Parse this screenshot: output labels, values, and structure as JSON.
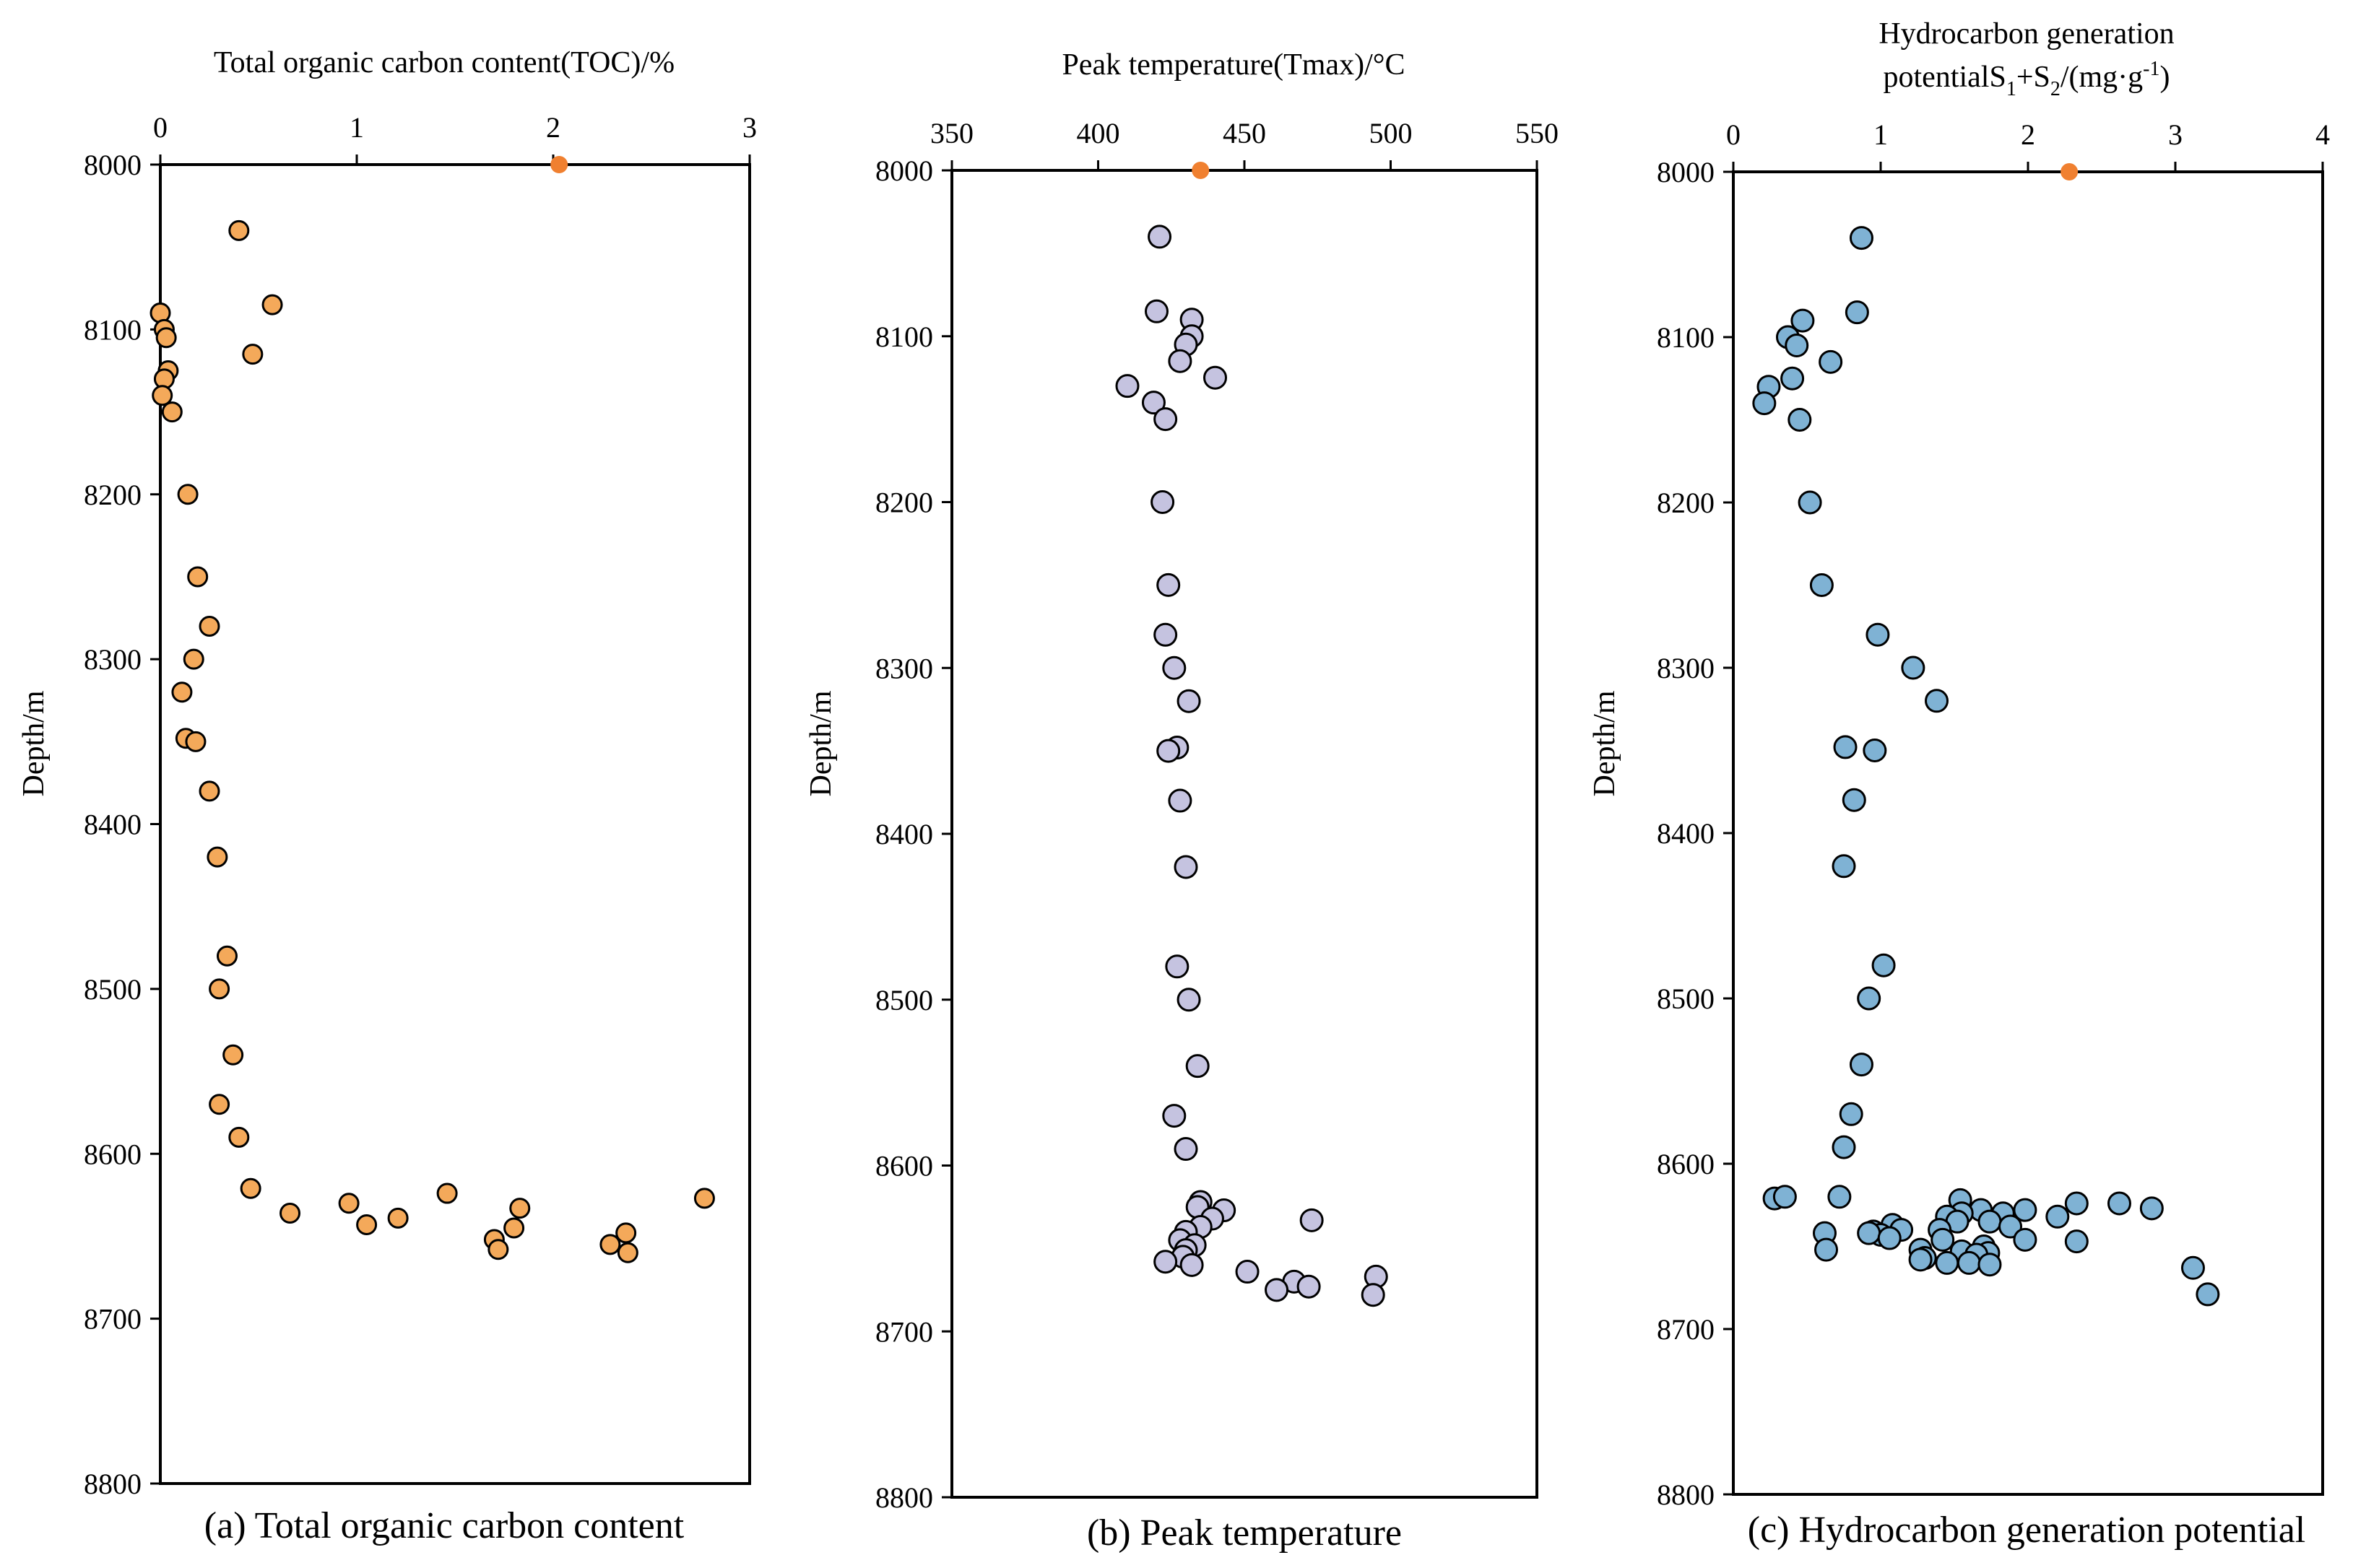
{
  "chart_data": [
    {
      "type": "scatter",
      "id": "toc",
      "title": "Total organic carbon content(TOC)/%",
      "ylabel": "Depth/m",
      "caption": "(a) Total organic carbon content",
      "xlim": [
        0,
        3
      ],
      "xticks": [
        0,
        1,
        2,
        3
      ],
      "ylim": [
        8000,
        8800
      ],
      "yticks": [
        8000,
        8100,
        8200,
        8300,
        8400,
        8500,
        8600,
        8700,
        8800
      ],
      "point_color": "#F4A95A",
      "marker_color": "#F08030",
      "marker": {
        "x": 2.03,
        "y": 8000
      },
      "points": [
        {
          "x": 0.4,
          "y": 8040
        },
        {
          "x": 0.57,
          "y": 8085
        },
        {
          "x": 0.0,
          "y": 8090
        },
        {
          "x": 0.02,
          "y": 8100
        },
        {
          "x": 0.03,
          "y": 8105
        },
        {
          "x": 0.47,
          "y": 8115
        },
        {
          "x": 0.04,
          "y": 8125
        },
        {
          "x": 0.02,
          "y": 8130
        },
        {
          "x": 0.01,
          "y": 8140
        },
        {
          "x": 0.06,
          "y": 8150
        },
        {
          "x": 0.14,
          "y": 8200
        },
        {
          "x": 0.19,
          "y": 8250
        },
        {
          "x": 0.25,
          "y": 8280
        },
        {
          "x": 0.17,
          "y": 8300
        },
        {
          "x": 0.11,
          "y": 8320
        },
        {
          "x": 0.13,
          "y": 8348
        },
        {
          "x": 0.18,
          "y": 8350
        },
        {
          "x": 0.25,
          "y": 8380
        },
        {
          "x": 0.29,
          "y": 8420
        },
        {
          "x": 0.34,
          "y": 8480
        },
        {
          "x": 0.3,
          "y": 8500
        },
        {
          "x": 0.37,
          "y": 8540
        },
        {
          "x": 0.3,
          "y": 8570
        },
        {
          "x": 0.4,
          "y": 8590
        },
        {
          "x": 0.46,
          "y": 8621
        },
        {
          "x": 0.66,
          "y": 8636
        },
        {
          "x": 0.96,
          "y": 8630
        },
        {
          "x": 1.05,
          "y": 8643
        },
        {
          "x": 1.21,
          "y": 8639
        },
        {
          "x": 1.46,
          "y": 8624
        },
        {
          "x": 1.7,
          "y": 8652
        },
        {
          "x": 1.72,
          "y": 8658
        },
        {
          "x": 1.8,
          "y": 8645
        },
        {
          "x": 1.83,
          "y": 8633
        },
        {
          "x": 2.29,
          "y": 8655
        },
        {
          "x": 2.37,
          "y": 8648
        },
        {
          "x": 2.38,
          "y": 8660
        },
        {
          "x": 2.77,
          "y": 8627
        }
      ]
    },
    {
      "type": "scatter",
      "id": "tmax",
      "title": "Peak temperature(Tmax)/°C",
      "ylabel": "Depth/m",
      "caption": "(b) Peak temperature",
      "xlim": [
        350,
        550
      ],
      "xticks": [
        350,
        400,
        450,
        500,
        550
      ],
      "ylim": [
        8000,
        8800
      ],
      "yticks": [
        8000,
        8100,
        8200,
        8300,
        8400,
        8500,
        8600,
        8700,
        8800
      ],
      "point_color": "#C5C3E0",
      "marker_color": "#F08030",
      "marker": {
        "x": 435,
        "y": 8000
      },
      "points": [
        {
          "x": 421,
          "y": 8040
        },
        {
          "x": 420,
          "y": 8085
        },
        {
          "x": 432,
          "y": 8090
        },
        {
          "x": 432,
          "y": 8100
        },
        {
          "x": 430,
          "y": 8105
        },
        {
          "x": 428,
          "y": 8115
        },
        {
          "x": 440,
          "y": 8125
        },
        {
          "x": 410,
          "y": 8130
        },
        {
          "x": 419,
          "y": 8140
        },
        {
          "x": 423,
          "y": 8150
        },
        {
          "x": 422,
          "y": 8200
        },
        {
          "x": 424,
          "y": 8250
        },
        {
          "x": 423,
          "y": 8280
        },
        {
          "x": 426,
          "y": 8300
        },
        {
          "x": 431,
          "y": 8320
        },
        {
          "x": 427,
          "y": 8348
        },
        {
          "x": 424,
          "y": 8350
        },
        {
          "x": 428,
          "y": 8380
        },
        {
          "x": 430,
          "y": 8420
        },
        {
          "x": 427,
          "y": 8480
        },
        {
          "x": 431,
          "y": 8500
        },
        {
          "x": 434,
          "y": 8540
        },
        {
          "x": 426,
          "y": 8570
        },
        {
          "x": 430,
          "y": 8590
        },
        {
          "x": 435,
          "y": 8622
        },
        {
          "x": 434,
          "y": 8625
        },
        {
          "x": 443,
          "y": 8627
        },
        {
          "x": 439,
          "y": 8632
        },
        {
          "x": 473,
          "y": 8633
        },
        {
          "x": 435,
          "y": 8637
        },
        {
          "x": 430,
          "y": 8640
        },
        {
          "x": 428,
          "y": 8645
        },
        {
          "x": 433,
          "y": 8648
        },
        {
          "x": 430,
          "y": 8651
        },
        {
          "x": 429,
          "y": 8655
        },
        {
          "x": 423,
          "y": 8658
        },
        {
          "x": 432,
          "y": 8660
        },
        {
          "x": 451,
          "y": 8664
        },
        {
          "x": 495,
          "y": 8667
        },
        {
          "x": 467,
          "y": 8670
        },
        {
          "x": 472,
          "y": 8673
        },
        {
          "x": 461,
          "y": 8675
        },
        {
          "x": 494,
          "y": 8678
        }
      ]
    },
    {
      "type": "scatter",
      "id": "s1s2",
      "title_line1": "Hydrocarbon generation",
      "title_line2_main": "potentialS",
      "title_sub1": "1",
      "title_mid": "+S",
      "title_sub2": "2",
      "title_unit": "/(mg·g",
      "title_sup": "-1",
      "title_end": ")",
      "ylabel": "Depth/m",
      "caption": "(c) Hydrocarbon generation potential",
      "xlim": [
        0,
        4
      ],
      "xticks": [
        0,
        1,
        2,
        3,
        4
      ],
      "ylim": [
        8000,
        8800
      ],
      "yticks": [
        8000,
        8100,
        8200,
        8300,
        8400,
        8500,
        8600,
        8700,
        8800
      ],
      "point_color": "#7FB2D4",
      "marker_color": "#F08030",
      "marker": {
        "x": 2.28,
        "y": 8000
      },
      "points": [
        {
          "x": 0.87,
          "y": 8040
        },
        {
          "x": 0.84,
          "y": 8085
        },
        {
          "x": 0.47,
          "y": 8090
        },
        {
          "x": 0.37,
          "y": 8100
        },
        {
          "x": 0.43,
          "y": 8105
        },
        {
          "x": 0.66,
          "y": 8115
        },
        {
          "x": 0.4,
          "y": 8125
        },
        {
          "x": 0.24,
          "y": 8130
        },
        {
          "x": 0.21,
          "y": 8140
        },
        {
          "x": 0.45,
          "y": 8150
        },
        {
          "x": 0.52,
          "y": 8200
        },
        {
          "x": 0.6,
          "y": 8250
        },
        {
          "x": 0.98,
          "y": 8280
        },
        {
          "x": 1.22,
          "y": 8300
        },
        {
          "x": 1.38,
          "y": 8320
        },
        {
          "x": 0.76,
          "y": 8348
        },
        {
          "x": 0.96,
          "y": 8350
        },
        {
          "x": 0.82,
          "y": 8380
        },
        {
          "x": 0.75,
          "y": 8420
        },
        {
          "x": 1.02,
          "y": 8480
        },
        {
          "x": 0.92,
          "y": 8500
        },
        {
          "x": 0.87,
          "y": 8540
        },
        {
          "x": 0.8,
          "y": 8570
        },
        {
          "x": 0.75,
          "y": 8590
        },
        {
          "x": 0.28,
          "y": 8621
        },
        {
          "x": 0.35,
          "y": 8620
        },
        {
          "x": 0.72,
          "y": 8620
        },
        {
          "x": 1.54,
          "y": 8622
        },
        {
          "x": 2.33,
          "y": 8624
        },
        {
          "x": 2.62,
          "y": 8624
        },
        {
          "x": 2.84,
          "y": 8627
        },
        {
          "x": 1.68,
          "y": 8628
        },
        {
          "x": 1.98,
          "y": 8628
        },
        {
          "x": 1.55,
          "y": 8630
        },
        {
          "x": 1.83,
          "y": 8630
        },
        {
          "x": 1.45,
          "y": 8632
        },
        {
          "x": 2.2,
          "y": 8632
        },
        {
          "x": 1.74,
          "y": 8635
        },
        {
          "x": 1.52,
          "y": 8635
        },
        {
          "x": 1.08,
          "y": 8637
        },
        {
          "x": 1.88,
          "y": 8638
        },
        {
          "x": 1.4,
          "y": 8640
        },
        {
          "x": 1.14,
          "y": 8640
        },
        {
          "x": 0.95,
          "y": 8641
        },
        {
          "x": 0.62,
          "y": 8642
        },
        {
          "x": 1.0,
          "y": 8643
        },
        {
          "x": 0.92,
          "y": 8642
        },
        {
          "x": 1.06,
          "y": 8645
        },
        {
          "x": 1.42,
          "y": 8646
        },
        {
          "x": 1.98,
          "y": 8646
        },
        {
          "x": 2.33,
          "y": 8647
        },
        {
          "x": 1.7,
          "y": 8650
        },
        {
          "x": 1.27,
          "y": 8652
        },
        {
          "x": 0.63,
          "y": 8652
        },
        {
          "x": 1.55,
          "y": 8653
        },
        {
          "x": 1.73,
          "y": 8654
        },
        {
          "x": 1.65,
          "y": 8655
        },
        {
          "x": 1.3,
          "y": 8657
        },
        {
          "x": 1.27,
          "y": 8658
        },
        {
          "x": 1.45,
          "y": 8660
        },
        {
          "x": 1.6,
          "y": 8660
        },
        {
          "x": 1.74,
          "y": 8661
        },
        {
          "x": 3.12,
          "y": 8663
        },
        {
          "x": 3.22,
          "y": 8679
        }
      ]
    }
  ]
}
